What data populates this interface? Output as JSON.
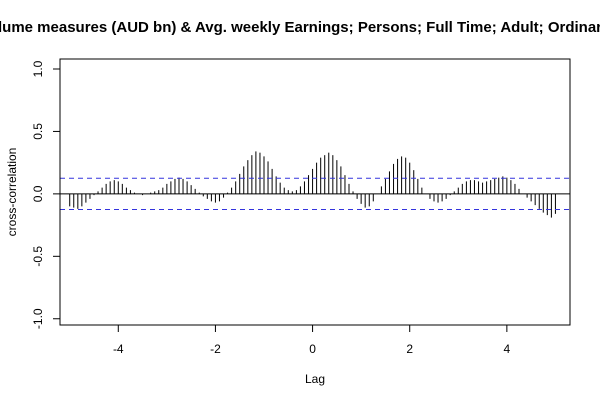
{
  "chart_data": {
    "type": "bar",
    "title": "lume measures (AUD bn) & Avg. weekly Earnings; Persons; Full Time; Adult; Ordinary t",
    "xlabel": "Lag",
    "ylabel": "cross-correlation",
    "xlim": [
      -5.2,
      5.3
    ],
    "ylim": [
      -1.05,
      1.08
    ],
    "x_ticks": [
      -4,
      -2,
      0,
      2,
      4
    ],
    "x_tick_labels": [
      "-4",
      "-2",
      "0",
      "2",
      "4"
    ],
    "y_ticks": [
      -1.0,
      -0.5,
      0.0,
      0.5,
      1.0
    ],
    "y_tick_labels": [
      "-1.0",
      "-0.5",
      "0.0",
      "0.5",
      "1.0"
    ],
    "confidence_band": 0.125,
    "grid": false,
    "colors": {
      "bars": "#000000",
      "confidence_lines": "#3333dd",
      "zero_line": "#000000"
    },
    "x": [
      -5.0,
      -4.917,
      -4.833,
      -4.75,
      -4.667,
      -4.583,
      -4.5,
      -4.417,
      -4.333,
      -4.25,
      -4.167,
      -4.083,
      -4.0,
      -3.917,
      -3.833,
      -3.75,
      -3.667,
      -3.583,
      -3.5,
      -3.417,
      -3.333,
      -3.25,
      -3.167,
      -3.083,
      -3.0,
      -2.917,
      -2.833,
      -2.75,
      -2.667,
      -2.583,
      -2.5,
      -2.417,
      -2.333,
      -2.25,
      -2.167,
      -2.083,
      -2.0,
      -1.917,
      -1.833,
      -1.75,
      -1.667,
      -1.583,
      -1.5,
      -1.417,
      -1.333,
      -1.25,
      -1.167,
      -1.083,
      -1.0,
      -0.917,
      -0.833,
      -0.75,
      -0.667,
      -0.583,
      -0.5,
      -0.417,
      -0.333,
      -0.25,
      -0.167,
      -0.083,
      0.0,
      0.083,
      0.167,
      0.25,
      0.333,
      0.417,
      0.5,
      0.583,
      0.667,
      0.75,
      0.833,
      0.917,
      1.0,
      1.083,
      1.167,
      1.25,
      1.333,
      1.417,
      1.5,
      1.583,
      1.667,
      1.75,
      1.833,
      1.917,
      2.0,
      2.083,
      2.167,
      2.25,
      2.333,
      2.417,
      2.5,
      2.583,
      2.667,
      2.75,
      2.833,
      2.917,
      3.0,
      3.083,
      3.167,
      3.25,
      3.333,
      3.417,
      3.5,
      3.583,
      3.667,
      3.75,
      3.833,
      3.917,
      4.0,
      4.083,
      4.167,
      4.25,
      4.333,
      4.417,
      4.5,
      4.583,
      4.667,
      4.75,
      4.833,
      4.917,
      5.0
    ],
    "values": [
      -0.1,
      -0.11,
      -0.12,
      -0.1,
      -0.07,
      -0.04,
      -0.01,
      0.02,
      0.05,
      0.08,
      0.1,
      0.11,
      0.1,
      0.08,
      0.05,
      0.03,
      0.01,
      0.0,
      -0.01,
      0.0,
      0.01,
      0.02,
      0.03,
      0.05,
      0.08,
      0.1,
      0.12,
      0.13,
      0.12,
      0.1,
      0.07,
      0.04,
      0.01,
      -0.02,
      -0.04,
      -0.06,
      -0.07,
      -0.06,
      -0.03,
      0.01,
      0.05,
      0.1,
      0.16,
      0.22,
      0.27,
      0.31,
      0.34,
      0.33,
      0.3,
      0.26,
      0.2,
      0.14,
      0.09,
      0.05,
      0.03,
      0.02,
      0.03,
      0.06,
      0.1,
      0.15,
      0.2,
      0.25,
      0.29,
      0.31,
      0.33,
      0.31,
      0.27,
      0.22,
      0.15,
      0.08,
      0.02,
      -0.04,
      -0.08,
      -0.11,
      -0.1,
      -0.06,
      0.0,
      0.06,
      0.12,
      0.18,
      0.24,
      0.28,
      0.3,
      0.29,
      0.25,
      0.19,
      0.12,
      0.05,
      0.0,
      -0.04,
      -0.06,
      -0.07,
      -0.06,
      -0.04,
      -0.01,
      0.02,
      0.05,
      0.08,
      0.1,
      0.11,
      0.11,
      0.1,
      0.09,
      0.1,
      0.11,
      0.12,
      0.13,
      0.14,
      0.13,
      0.11,
      0.08,
      0.04,
      0.0,
      -0.03,
      -0.06,
      -0.09,
      -0.12,
      -0.15,
      -0.17,
      -0.19,
      -0.16
    ]
  }
}
